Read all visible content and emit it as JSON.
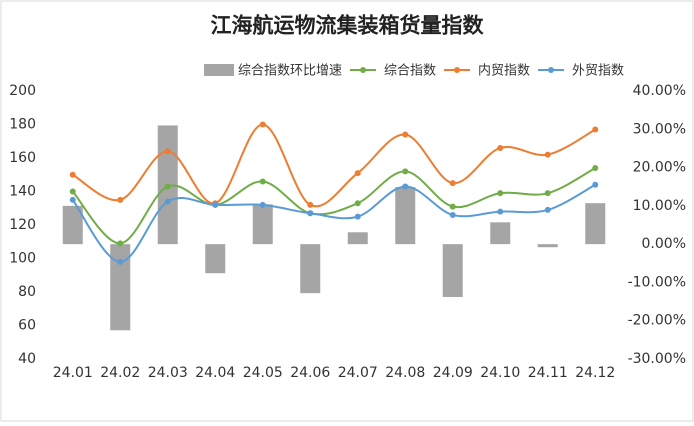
{
  "chart_data": {
    "type": "combo",
    "title": "江海航运物流集装箱货量指数",
    "categories": [
      "24.01",
      "24.02",
      "24.03",
      "24.04",
      "24.05",
      "24.06",
      "24.07",
      "24.08",
      "24.09",
      "24.10",
      "24.11",
      "24.12"
    ],
    "series": [
      {
        "name": "综合指数环比增速",
        "type": "bar",
        "axis": "y2",
        "color": "#a5a5a5",
        "values": [
          10,
          -22.5,
          31,
          -7.6,
          10.4,
          -12.8,
          3.1,
          14.9,
          -13.8,
          5.7,
          -0.8,
          10.7
        ]
      },
      {
        "name": "综合指数",
        "type": "line",
        "color": "#70ad47",
        "values": [
          140,
          109,
          143,
          132,
          146,
          127,
          133,
          152,
          131,
          139,
          139,
          154
        ]
      },
      {
        "name": "内贸指数",
        "type": "line",
        "color": "#ed7d31",
        "values": [
          150,
          135,
          164,
          133,
          180,
          132,
          151,
          174,
          145,
          166,
          162,
          177
        ]
      },
      {
        "name": "外贸指数",
        "type": "line",
        "color": "#5b9bd5",
        "values": [
          135,
          98,
          134,
          132,
          132,
          127,
          125,
          143,
          126,
          128,
          129,
          144
        ]
      }
    ],
    "ylim": [
      40,
      200
    ],
    "yticks": [
      40,
      60,
      80,
      100,
      120,
      140,
      160,
      180,
      200
    ],
    "y2lim": [
      -30,
      40
    ],
    "y2ticks": [
      {
        "value": -30,
        "label": "-30.00%"
      },
      {
        "value": -20,
        "label": "-20.00%"
      },
      {
        "value": -10,
        "label": "-10.00%"
      },
      {
        "value": 0,
        "label": "0.00%"
      },
      {
        "value": 10,
        "label": "10.00%"
      },
      {
        "value": 20,
        "label": "20.00%"
      },
      {
        "value": 30,
        "label": "30.00%"
      },
      {
        "value": 40,
        "label": "40.00%"
      }
    ],
    "legend": "top",
    "grid": false
  }
}
